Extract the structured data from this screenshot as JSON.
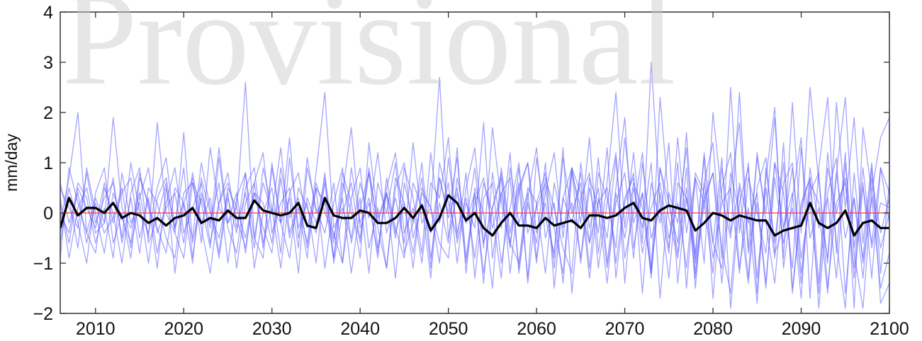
{
  "chart_data": {
    "type": "line",
    "title": "",
    "xlabel": "",
    "ylabel": "mm/day",
    "xlim": [
      2006,
      2100
    ],
    "ylim": [
      -2,
      4
    ],
    "xticks": [
      2010,
      2020,
      2030,
      2040,
      2050,
      2060,
      2070,
      2080,
      2090,
      2100
    ],
    "yticks": [
      -2,
      -1,
      0,
      1,
      2,
      3,
      4
    ],
    "x": [
      2006,
      2007,
      2008,
      2009,
      2010,
      2011,
      2012,
      2013,
      2014,
      2015,
      2016,
      2017,
      2018,
      2019,
      2020,
      2021,
      2022,
      2023,
      2024,
      2025,
      2026,
      2027,
      2028,
      2029,
      2030,
      2031,
      2032,
      2033,
      2034,
      2035,
      2036,
      2037,
      2038,
      2039,
      2040,
      2041,
      2042,
      2043,
      2044,
      2045,
      2046,
      2047,
      2048,
      2049,
      2050,
      2051,
      2052,
      2053,
      2054,
      2055,
      2056,
      2057,
      2058,
      2059,
      2060,
      2061,
      2062,
      2063,
      2064,
      2065,
      2066,
      2067,
      2068,
      2069,
      2070,
      2071,
      2072,
      2073,
      2074,
      2075,
      2076,
      2077,
      2078,
      2079,
      2080,
      2081,
      2082,
      2083,
      2084,
      2085,
      2086,
      2087,
      2088,
      2089,
      2090,
      2091,
      2092,
      2093,
      2094,
      2095,
      2096,
      2097,
      2098,
      2099,
      2100
    ],
    "series": [
      {
        "color": "#000000",
        "values": [
          -0.3,
          0.3,
          -0.05,
          0.1,
          0.1,
          0.0,
          0.2,
          -0.1,
          0.0,
          -0.05,
          -0.2,
          -0.1,
          -0.25,
          -0.1,
          -0.05,
          0.1,
          -0.2,
          -0.1,
          -0.15,
          0.05,
          -0.1,
          -0.1,
          0.25,
          0.05,
          0.0,
          -0.05,
          0.0,
          0.2,
          -0.25,
          -0.3,
          0.3,
          -0.05,
          -0.1,
          -0.1,
          0.05,
          0.0,
          -0.2,
          -0.2,
          -0.1,
          0.1,
          -0.1,
          0.15,
          -0.35,
          -0.1,
          0.35,
          0.2,
          -0.15,
          0.0,
          -0.3,
          -0.45,
          -0.2,
          0.0,
          -0.25,
          -0.25,
          -0.3,
          -0.1,
          -0.25,
          -0.2,
          -0.15,
          -0.3,
          -0.05,
          -0.05,
          -0.1,
          -0.05,
          0.1,
          0.2,
          -0.1,
          -0.15,
          0.05,
          0.15,
          0.1,
          0.05,
          -0.35,
          -0.2,
          0.0,
          -0.05,
          -0.15,
          -0.05,
          -0.1,
          -0.15,
          -0.15,
          -0.45,
          -0.35,
          -0.3,
          -0.25,
          0.2,
          -0.2,
          -0.3,
          -0.2,
          0.05,
          -0.45,
          -0.2,
          -0.15,
          -0.3,
          -0.3
        ]
      },
      {
        "color": "#ff3a3a",
        "values": [
          0,
          0,
          0,
          0,
          0,
          0,
          0,
          0,
          0,
          0,
          0,
          0,
          0,
          0,
          0,
          0,
          0,
          0,
          0,
          0,
          0,
          0,
          0,
          0,
          0,
          0,
          0,
          0,
          0,
          0,
          0,
          0,
          0,
          0,
          0,
          0,
          0,
          0,
          0,
          0,
          0,
          0,
          0,
          0,
          0,
          0,
          0,
          0,
          0,
          0,
          0,
          0,
          0,
          0,
          0,
          0,
          0,
          0,
          0,
          0,
          0,
          0,
          0,
          0,
          0,
          0,
          0,
          0,
          0,
          0,
          0,
          0,
          0,
          0,
          0,
          0,
          0,
          0,
          0,
          0,
          0,
          0,
          0,
          0,
          0,
          0,
          0,
          0,
          0,
          0,
          0,
          0,
          0,
          0,
          0
        ]
      },
      {
        "color": "#5a5aff",
        "values": [
          -0.2,
          0.7,
          2.0,
          -0.4,
          0.3,
          -0.2,
          1.9,
          0.1,
          -0.3,
          0.4,
          -0.5,
          1.8,
          0.0,
          -0.4,
          1.6,
          -0.6,
          0.3,
          -0.3,
          1.3,
          -0.2,
          0.1,
          2.6,
          -0.5,
          0.6,
          0.0,
          1.3,
          -0.4,
          0.2,
          -0.6,
          0.8,
          2.4,
          -0.3,
          0.1,
          -0.5,
          0.6,
          -0.1,
          1.2,
          -0.4,
          0.3,
          -0.6,
          1.4,
          -0.2,
          0.1,
          2.7,
          -0.5,
          0.4,
          -0.2,
          0.9,
          -0.7,
          1.7,
          0.2,
          -0.6,
          0.5,
          1.0,
          -0.9,
          0.4,
          1.2,
          -0.5,
          0.9,
          -0.2,
          1.5,
          -0.8,
          0.6,
          2.4,
          -0.3,
          1.2,
          -0.6,
          3.0,
          0.2,
          -0.8,
          1.5,
          -0.4,
          0.7,
          -1.0,
          2.0,
          0.3,
          -0.5,
          2.4,
          -0.7,
          1.1,
          0.0,
          1.9,
          -0.9,
          2.2,
          -0.4,
          2.5,
          0.6,
          -1.0,
          2.2,
          0.1,
          1.9,
          -0.6,
          1.0,
          -1.2,
          0.6
        ]
      },
      {
        "color": "#5a5aff",
        "values": [
          0.2,
          -0.6,
          0.5,
          0.1,
          -0.3,
          0.6,
          -0.2,
          0.4,
          0.7,
          -0.5,
          0.3,
          -0.8,
          0.2,
          0.9,
          -0.4,
          0.1,
          0.6,
          -0.6,
          0.2,
          0.8,
          -0.3,
          0.4,
          -0.7,
          0.9,
          0.1,
          -0.2,
          1.5,
          -0.5,
          0.3,
          -0.2,
          0.6,
          -0.9,
          0.4,
          1.7,
          -0.3,
          0.2,
          -0.8,
          0.5,
          1.2,
          -0.4,
          0.1,
          -1.0,
          0.6,
          0.3,
          1.5,
          -0.6,
          0.2,
          -0.3,
          1.8,
          -0.9,
          0.4,
          0.7,
          -1.1,
          0.3,
          1.3,
          -0.5,
          0.2,
          -1.4,
          0.8,
          0.1,
          -0.6,
          1.1,
          -1.0,
          0.5,
          1.9,
          -0.7,
          0.4,
          -1.2,
          2.3,
          0.2,
          -0.8,
          0.9,
          -1.5,
          0.6,
          1.4,
          -0.9,
          2.5,
          -0.4,
          1.0,
          -1.6,
          0.7,
          2.1,
          -1.1,
          0.3,
          1.5,
          -1.7,
          0.9,
          2.3,
          -0.8,
          1.2,
          -1.9,
          1.7,
          0.4,
          1.5,
          1.9
        ]
      },
      {
        "color": "#5a5aff",
        "values": [
          -0.6,
          0.5,
          -0.2,
          -1.0,
          0.4,
          0.9,
          -0.6,
          0.0,
          -0.9,
          0.7,
          0.2,
          -1.1,
          0.5,
          -0.3,
          0.9,
          -0.9,
          0.4,
          -0.2,
          0.6,
          -1.0,
          0.3,
          0.8,
          -0.5,
          -0.9,
          1.0,
          -0.2,
          0.3,
          -1.2,
          0.9,
          0.1,
          -0.4,
          0.6,
          -1.0,
          0.3,
          0.9,
          -0.7,
          0.1,
          -1.1,
          0.5,
          1.0,
          -0.5,
          0.2,
          -1.3,
          0.7,
          0.0,
          1.1,
          -0.9,
          0.4,
          -1.4,
          0.8,
          -0.3,
          1.2,
          -1.2,
          0.2,
          -0.6,
          1.0,
          -1.5,
          0.3,
          0.9,
          -1.0,
          0.5,
          -0.4,
          1.3,
          -1.3,
          0.2,
          0.8,
          -1.6,
          0.6,
          -0.2,
          1.4,
          -1.4,
          0.3,
          -0.8,
          1.1,
          -1.7,
          0.5,
          1.2,
          -1.1,
          0.1,
          -1.8,
          0.9,
          -0.6,
          1.0,
          -1.5,
          0.2,
          0.7,
          -1.9,
          0.4,
          1.1,
          -1.6,
          0.3,
          -0.9,
          0.9,
          -1.8,
          -1.4
        ]
      },
      {
        "color": "#5a5aff",
        "values": [
          0.5,
          0.1,
          -0.3,
          0.8,
          -0.2,
          0.3,
          0.6,
          -0.5,
          1.0,
          0.0,
          -0.4,
          0.5,
          1.1,
          -0.3,
          0.2,
          0.7,
          -0.6,
          1.3,
          0.1,
          -0.2,
          0.4,
          -0.8,
          0.6,
          1.2,
          -0.4,
          0.2,
          0.5,
          -0.7,
          1.1,
          0.0,
          0.3,
          -0.6,
          0.8,
          0.2,
          -0.9,
          1.4,
          -0.1,
          0.4,
          -0.5,
          0.9,
          0.3,
          -0.8,
          1.2,
          -0.2,
          0.6,
          -1.0,
          0.5,
          1.3,
          -0.6,
          0.1,
          0.7,
          -1.2,
          0.4,
          1.0,
          -0.4,
          0.2,
          -0.9,
          1.1,
          0.0,
          0.6,
          -1.1,
          0.8,
          0.3,
          -0.7,
          1.5,
          -0.2,
          0.4,
          -1.3,
          0.9,
          0.2,
          -0.6,
          1.6,
          -1.0,
          0.3,
          0.8,
          -1.4,
          0.5,
          1.8,
          -0.8,
          0.2,
          -1.5,
          1.0,
          0.4,
          -1.1,
          1.3,
          -0.5,
          0.1,
          -1.6,
          0.8,
          2.3,
          -0.7,
          0.6,
          -1.3,
          0.9,
          0.4
        ]
      },
      {
        "color": "#5a5aff",
        "values": [
          -0.9,
          0.9,
          0.2,
          -0.4,
          -0.8,
          0.5,
          0.0,
          -1.0,
          0.4,
          0.9,
          -0.6,
          -0.1,
          0.6,
          -1.2,
          0.2,
          -0.5,
          1.0,
          0.1,
          -0.9,
          0.3,
          -0.4,
          0.8,
          -1.1,
          0.0,
          0.5,
          -0.8,
          1.1,
          -0.3,
          0.2,
          -1.0,
          0.7,
          -0.5,
          0.3,
          -1.2,
          0.1,
          0.8,
          -0.7,
          0.4,
          -1.3,
          0.6,
          -0.2,
          1.0,
          -0.9,
          0.2,
          -0.6,
          1.3,
          -1.2,
          0.5,
          0.0,
          -1.5,
          0.9,
          -0.4,
          0.6,
          -1.3,
          1.1,
          -0.1,
          -0.8,
          1.3,
          -1.6,
          0.3,
          0.8,
          -1.1,
          0.2,
          1.2,
          -1.4,
          0.5,
          -0.3,
          1.0,
          -1.7,
          0.4,
          -0.2,
          1.3,
          -1.2,
          0.6,
          -0.6,
          1.1,
          -1.9,
          0.2,
          0.9,
          -1.3,
          0.5,
          -0.9,
          1.4,
          -1.6,
          0.1,
          0.7,
          -1.4,
          1.2,
          -0.6,
          -1.9,
          0.8,
          -1.0,
          0.3,
          -1.5,
          -0.8
        ]
      },
      {
        "color": "#5a5aff",
        "values": [
          0.0,
          -0.4,
          0.6,
          0.3,
          -0.6,
          0.1,
          -0.9,
          0.8,
          -0.2,
          0.2,
          -1.0,
          0.3,
          0.7,
          -0.4,
          -0.9,
          0.6,
          0.2,
          -0.7,
          1.1,
          -0.3,
          -0.8,
          0.5,
          0.9,
          -0.6,
          0.1,
          -1.1,
          0.4,
          0.8,
          -0.3,
          0.5,
          -1.1,
          0.2,
          0.9,
          -0.6,
          0.3,
          -1.2,
          0.6,
          0.0,
          1.0,
          -0.8,
          -0.2,
          0.7,
          -1.1,
          1.0,
          0.2,
          -0.5,
          0.8,
          -1.3,
          0.3,
          0.6,
          -1.0,
          0.1,
          1.0,
          -1.4,
          0.2,
          0.8,
          -0.3,
          -1.2,
          0.9,
          0.4,
          -1.3,
          0.3,
          -0.5,
          1.1,
          -0.9,
          0.0,
          1.2,
          -1.1,
          0.4,
          -0.7,
          1.0,
          -1.5,
          0.7,
          0.2,
          -1.2,
          0.9,
          -0.4,
          0.5,
          -1.3,
          1.2,
          -0.2,
          -1.4,
          0.6,
          1.0,
          -0.9,
          0.2,
          -1.6,
          0.9,
          0.0,
          0.7,
          -1.3,
          0.5,
          -0.6,
          0.9,
          -0.2
        ]
      },
      {
        "color": "#5a5aff",
        "values": [
          -0.4,
          0.3,
          -0.7,
          0.9,
          0.0,
          -0.8,
          0.4,
          -0.1,
          -0.6,
          0.8,
          0.1,
          -0.3,
          -0.8,
          0.5,
          0.2,
          -1.0,
          0.7,
          0.0,
          -0.5,
          0.4,
          -1.1,
          0.2,
          0.6,
          -0.7,
          0.9,
          -0.2,
          -0.9,
          0.5,
          0.1,
          -0.4,
          0.8,
          -1.0,
          0.0,
          0.6,
          -0.6,
          0.9,
          -0.3,
          -1.1,
          0.7,
          0.2,
          -0.8,
          0.4,
          0.1,
          -1.0,
          1.1,
          -0.4,
          0.3,
          -0.9,
          0.6,
          0.0,
          -1.3,
          0.9,
          -0.2,
          0.4,
          -1.0,
          0.7,
          0.1,
          -0.7,
          -1.2,
          1.0,
          -0.3,
          0.5,
          -1.1,
          0.2,
          0.8,
          -0.9,
          1.0,
          -0.5,
          0.1,
          -1.3,
          0.6,
          0.3,
          -0.9,
          1.2,
          -0.6,
          -1.1,
          0.8,
          0.0,
          -1.4,
          0.5,
          1.1,
          -0.8,
          -0.3,
          0.9,
          -1.2,
          0.4,
          0.8,
          -1.5,
          0.2,
          0.6,
          -1.1,
          0.9,
          -0.7,
          0.2,
          0.1
        ]
      },
      {
        "color": "#5a5aff",
        "values": [
          0.3,
          -0.9,
          0.1,
          0.5,
          -0.4,
          -0.2,
          0.7,
          -0.6,
          0.3,
          -0.8,
          0.5,
          0.2,
          -0.5,
          -0.9,
          0.4,
          0.6,
          -0.3,
          -1.2,
          0.2,
          0.6,
          -0.1,
          -0.7,
          0.4,
          -0.3,
          -0.8,
          0.7,
          -0.5,
          0.1,
          -0.9,
          0.6,
          0.0,
          -0.4,
          -1.0,
          0.9,
          -0.2,
          0.3,
          -0.9,
          0.7,
          -0.4,
          0.2,
          -1.1,
          0.5,
          0.1,
          -0.6,
          -0.9,
          0.7,
          -0.2,
          0.4,
          -1.2,
          0.1,
          0.8,
          -0.6,
          -1.0,
          0.5,
          0.2,
          -1.2,
          0.6,
          -0.3,
          0.2,
          -0.9,
          0.7,
          0.1,
          -1.4,
          0.4,
          -0.5,
          0.6,
          0.1,
          -1.2,
          0.9,
          -0.1,
          -0.9,
          0.5,
          -1.3,
          0.2,
          0.8,
          -0.7,
          -1.6,
          0.6,
          -0.2,
          0.4,
          -1.4,
          0.7,
          -0.6,
          0.1,
          -1.7,
          0.9,
          -0.3,
          0.3,
          -1.3,
          1.0,
          -0.8,
          -1.9,
          0.4,
          -0.7,
          0.0
        ]
      },
      {
        "color": "#5a5aff",
        "values": [
          0.6,
          -0.2,
          0.4,
          -0.6,
          0.2,
          -0.4,
          -0.1,
          0.5,
          -0.7,
          0.3,
          0.9,
          -0.4,
          0.1,
          0.4,
          -0.6,
          0.8,
          -0.2,
          0.3,
          -0.8,
          0.5,
          0.1,
          -0.5,
          0.4,
          0.2,
          -0.6,
          0.9,
          -0.1,
          0.3,
          -0.7,
          0.5,
          0.2,
          -0.9,
          0.6,
          0.0,
          -0.5,
          0.8,
          -0.2,
          0.4,
          -0.3,
          -0.9,
          0.6,
          0.1,
          -0.4,
          0.7,
          -0.1,
          0.5,
          -1.0,
          0.2,
          0.7,
          -0.3,
          0.4,
          -0.7,
          0.9,
          -0.4,
          0.1,
          0.6,
          -1.1,
          0.3,
          -0.2,
          0.8,
          -0.6,
          0.2,
          0.5,
          -1.0,
          0.3,
          0.7,
          -0.8,
          0.1,
          0.6,
          -0.5,
          0.2,
          -1.1,
          0.8,
          0.4,
          -0.9,
          0.2,
          0.5,
          -1.2,
          0.7,
          0.0,
          -0.8,
          1.0,
          -0.3,
          0.4,
          -1.4,
          0.6,
          0.2,
          -0.9,
          0.8,
          -0.5,
          0.3,
          -1.3,
          0.7,
          -0.4,
          0.3
        ]
      }
    ]
  },
  "watermark": "Provisional"
}
